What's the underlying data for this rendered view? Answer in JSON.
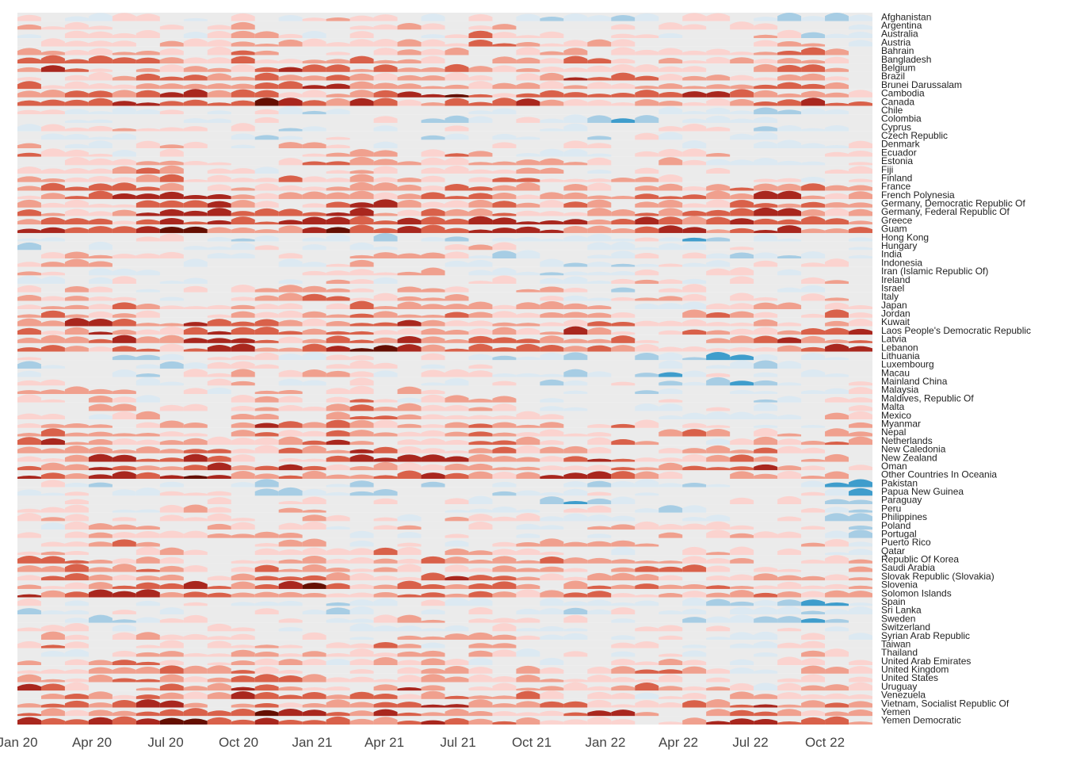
{
  "chart_data": {
    "type": "heatmap",
    "title": "",
    "xlabel": "",
    "ylabel": "",
    "x_range": [
      "2020-01",
      "2022-12"
    ],
    "x_ticks": [
      "Jan 20",
      "Apr 20",
      "Jul 20",
      "Oct 20",
      "Jan 21",
      "Apr 21",
      "Jul 21",
      "Oct 21",
      "Jan 22",
      "Apr 22",
      "Jul 22",
      "Oct 22"
    ],
    "categories": [
      "Afghanistan",
      "Argentina",
      "Australia",
      "Austria",
      "Bahrain",
      "Bangladesh",
      "Belgium",
      "Brazil",
      "Brunei Darussalam",
      "Cambodia",
      "Canada",
      "Chile",
      "Colombia",
      "Cyprus",
      "Czech Republic",
      "Denmark",
      "Ecuador",
      "Estonia",
      "Fiji",
      "Finland",
      "France",
      "French Polynesia",
      "Germany, Democratic Republic Of",
      "Germany, Federal Republic Of",
      "Greece",
      "Guam",
      "Hong Kong",
      "Hungary",
      "India",
      "Indonesia",
      "Iran (Islamic Republic Of)",
      "Ireland",
      "Israel",
      "Italy",
      "Japan",
      "Jordan",
      "Kuwait",
      "Laos People's Democratic Republic",
      "Latvia",
      "Lebanon",
      "Lithuania",
      "Luxembourg",
      "Macau",
      "Mainland China",
      "Malaysia",
      "Maldives, Republic Of",
      "Malta",
      "Mexico",
      "Myanmar",
      "Nepal",
      "Netherlands",
      "New Caledonia",
      "New Zealand",
      "Oman",
      "Other Countries In Oceania",
      "Pakistan",
      "Papua New Guinea",
      "Paraguay",
      "Peru",
      "Philippines",
      "Poland",
      "Portugal",
      "Puerto Rico",
      "Qatar",
      "Republic Of Korea",
      "Saudi Arabia",
      "Slovak Republic (Slovakia)",
      "Slovenia",
      "Solomon Islands",
      "Spain",
      "Sri Lanka",
      "Sweden",
      "Switzerland",
      "Syrian Arab Republic",
      "Taiwan",
      "Thailand",
      "United Arab Emirates",
      "United Kingdom",
      "United States",
      "Uruguay",
      "Venezuela",
      "Vietnam, Socialist Republic Of",
      "Yemen",
      "Yemen Democratic"
    ],
    "palette": {
      "positive": [
        "#fbd3cf",
        "#f0a08e",
        "#d9614a",
        "#a9271e",
        "#650f02"
      ],
      "negative": [
        "#dce9f2",
        "#a7cde4",
        "#3f9dcc",
        "#1a6fa8",
        "#053a66"
      ],
      "background": "#ebebeb"
    },
    "grid": false,
    "legend": "none"
  }
}
